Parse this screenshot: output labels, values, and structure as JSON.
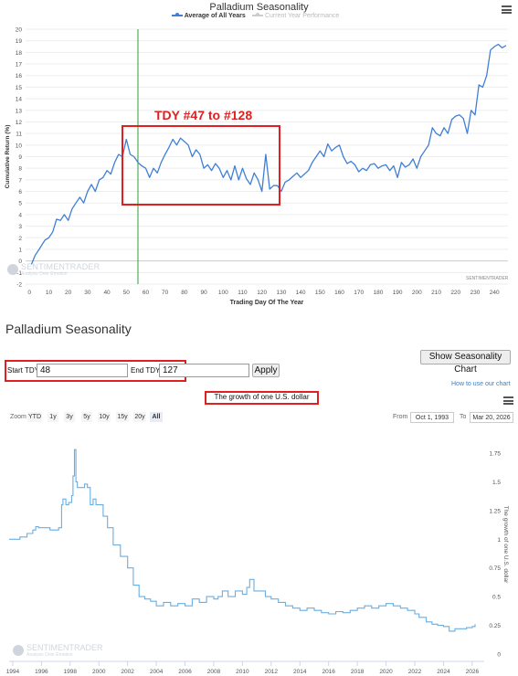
{
  "top_chart": {
    "title": "Palladium Seasonality",
    "legend": [
      {
        "label": "Average of All Years",
        "color": "#3f7fd6",
        "active": true
      },
      {
        "label": "Current Year Performance",
        "color": "#bbbbbb",
        "active": false
      }
    ],
    "annotation": "TDY #47 to #128",
    "watermark": "SENTIMENTRADER",
    "watermark_sub": "Analysis Over Emotion",
    "credit": "SENTIMENTRADER",
    "menu_icon": "hamburger-menu-icon"
  },
  "middle": {
    "title": "Palladium Seasonality",
    "show_chart_button": "Show Seasonality Chart",
    "start_label": "Start TDY:",
    "start_value": "48",
    "end_label": "End TDY:",
    "end_value": "127",
    "apply_button": "Apply",
    "help_link": "How to use our chart"
  },
  "bottom_chart": {
    "title": "The growth of one U.S. dollar",
    "zoom_label": "Zoom",
    "zoom_options": [
      "YTD",
      "1y",
      "3y",
      "5y",
      "10y",
      "15y",
      "20y",
      "All"
    ],
    "zoom_selected": "All",
    "from_label": "From",
    "from_value": "Oct 1, 1993",
    "to_label": "To",
    "to_value": "Mar 20, 2026",
    "watermark": "SENTIMENTRADER",
    "watermark_sub": "Analysis Over Emotion",
    "menu_icon": "hamburger-menu-icon"
  },
  "colors": {
    "line": "#3f7fd6",
    "bottom_line": "#6aaee0",
    "highlight": "#e02020",
    "marker": "#2e9e3a"
  },
  "chart_data": [
    {
      "type": "line",
      "title": "Palladium Seasonality",
      "xlabel": "Trading Day Of The Year",
      "ylabel": "Cumulative Return (%)",
      "xlim": [
        -2,
        247
      ],
      "ylim": [
        -2,
        20
      ],
      "x_ticks": [
        0,
        10,
        20,
        30,
        40,
        50,
        60,
        70,
        80,
        90,
        100,
        110,
        120,
        130,
        140,
        150,
        160,
        170,
        180,
        190,
        200,
        210,
        220,
        230,
        240
      ],
      "y_ticks": [
        -2,
        -1,
        0,
        1,
        2,
        3,
        4,
        5,
        6,
        7,
        8,
        9,
        10,
        11,
        12,
        13,
        14,
        15,
        16,
        17,
        18,
        19,
        20
      ],
      "vertical_line_x": 56,
      "highlight_range": [
        47,
        128
      ],
      "series": [
        {
          "name": "Average of All Years",
          "x": [
            1,
            3,
            5,
            8,
            10,
            12,
            14,
            16,
            18,
            20,
            22,
            24,
            26,
            28,
            30,
            32,
            34,
            36,
            38,
            40,
            42,
            44,
            46,
            48,
            50,
            52,
            54,
            56,
            58,
            60,
            62,
            64,
            66,
            68,
            70,
            72,
            74,
            76,
            78,
            80,
            82,
            84,
            86,
            88,
            90,
            92,
            94,
            96,
            98,
            100,
            102,
            104,
            106,
            108,
            110,
            112,
            114,
            116,
            118,
            120,
            122,
            124,
            126,
            128,
            130,
            132,
            134,
            136,
            138,
            140,
            142,
            144,
            146,
            148,
            150,
            152,
            154,
            156,
            158,
            160,
            162,
            164,
            166,
            168,
            170,
            172,
            174,
            176,
            178,
            180,
            182,
            184,
            186,
            188,
            190,
            192,
            194,
            196,
            198,
            200,
            202,
            204,
            206,
            208,
            210,
            212,
            214,
            216,
            218,
            220,
            222,
            224,
            226,
            228,
            230,
            232,
            234,
            236,
            238,
            240,
            242,
            244,
            246
          ],
          "y": [
            -0.3,
            0.5,
            1.0,
            1.8,
            2.0,
            2.5,
            3.6,
            3.5,
            4.0,
            3.5,
            4.5,
            5.0,
            5.5,
            5.0,
            6.0,
            6.6,
            6.0,
            7.0,
            7.2,
            7.8,
            7.5,
            8.5,
            9.2,
            9.0,
            10.5,
            9.2,
            9.0,
            8.5,
            8.2,
            8.0,
            7.2,
            8.0,
            7.6,
            8.5,
            9.2,
            9.8,
            10.5,
            10.0,
            10.6,
            10.3,
            10.0,
            9.0,
            9.6,
            9.2,
            8.0,
            8.3,
            7.8,
            8.4,
            8.0,
            7.2,
            7.8,
            7.0,
            8.2,
            7.0,
            8.0,
            7.1,
            6.6,
            7.6,
            7.0,
            6.0,
            9.2,
            6.2,
            6.5,
            6.5,
            6.0,
            6.8,
            7.0,
            7.3,
            7.6,
            7.2,
            7.5,
            7.8,
            8.5,
            9.0,
            9.5,
            9.0,
            10.1,
            9.5,
            9.8,
            10.0,
            9.0,
            8.4,
            8.6,
            8.3,
            7.7,
            8.0,
            7.8,
            8.3,
            8.4,
            8.0,
            8.2,
            8.3,
            7.8,
            8.2,
            7.2,
            8.5,
            8.1,
            8.3,
            8.8,
            8.0,
            9.0,
            9.5,
            10.0,
            11.5,
            11.0,
            10.8,
            11.5,
            11.0,
            12.2,
            12.5,
            12.6,
            12.3,
            11.0,
            13.0,
            12.6,
            15.2,
            15.0,
            16.0,
            18.2,
            18.5,
            18.7,
            18.4,
            18.6
          ]
        }
      ]
    },
    {
      "type": "line",
      "title": "The growth of one U.S. dollar",
      "ylabel": "The growth of one U.S. dollar",
      "xlim": [
        1993.75,
        2026.2
      ],
      "ylim": [
        0,
        1.75
      ],
      "x_ticks": [
        1994,
        1996,
        1998,
        2000,
        2002,
        2004,
        2006,
        2008,
        2010,
        2012,
        2014,
        2016,
        2018,
        2020,
        2022,
        2024,
        2026
      ],
      "y_ticks": [
        0,
        0.25,
        0.5,
        0.75,
        1,
        1.25,
        1.5,
        1.75
      ],
      "series": [
        {
          "name": "",
          "x": [
            1993.75,
            1994.2,
            1994.5,
            1995.0,
            1995.4,
            1995.6,
            1995.8,
            1996.2,
            1996.6,
            1996.9,
            1997.2,
            1997.4,
            1997.5,
            1997.7,
            1997.9,
            1998.1,
            1998.2,
            1998.3,
            1998.4,
            1998.5,
            1998.7,
            1999.0,
            1999.2,
            1999.4,
            1999.6,
            1999.8,
            2000.0,
            2000.3,
            2000.6,
            2001.0,
            2001.5,
            2002.0,
            2002.4,
            2002.8,
            2003.2,
            2003.6,
            2004.0,
            2004.5,
            2005.0,
            2005.5,
            2006.0,
            2006.5,
            2007.0,
            2007.5,
            2008.0,
            2008.3,
            2008.6,
            2009.0,
            2009.5,
            2010.0,
            2010.3,
            2010.5,
            2010.8,
            2011.2,
            2011.6,
            2012.0,
            2012.5,
            2013.0,
            2013.5,
            2014.0,
            2014.5,
            2015.0,
            2015.5,
            2016.0,
            2016.5,
            2017.0,
            2017.5,
            2018.0,
            2018.5,
            2019.0,
            2019.5,
            2020.0,
            2020.5,
            2021.0,
            2021.5,
            2022.0,
            2022.3,
            2022.8,
            2023.2,
            2023.6,
            2024.0,
            2024.4,
            2024.8,
            2025.2,
            2025.6,
            2026.0,
            2026.2
          ],
          "y": [
            1.0,
            1.0,
            1.02,
            1.05,
            1.08,
            1.11,
            1.1,
            1.1,
            1.08,
            1.08,
            1.1,
            1.3,
            1.35,
            1.3,
            1.32,
            1.38,
            1.55,
            1.78,
            1.5,
            1.45,
            1.45,
            1.48,
            1.45,
            1.3,
            1.35,
            1.3,
            1.3,
            1.2,
            1.1,
            0.95,
            0.85,
            0.75,
            0.6,
            0.5,
            0.48,
            0.46,
            0.42,
            0.45,
            0.42,
            0.44,
            0.42,
            0.48,
            0.45,
            0.5,
            0.48,
            0.5,
            0.55,
            0.5,
            0.55,
            0.52,
            0.58,
            0.65,
            0.55,
            0.55,
            0.5,
            0.48,
            0.45,
            0.42,
            0.4,
            0.38,
            0.4,
            0.38,
            0.36,
            0.35,
            0.37,
            0.36,
            0.38,
            0.4,
            0.42,
            0.4,
            0.42,
            0.44,
            0.42,
            0.4,
            0.38,
            0.35,
            0.32,
            0.28,
            0.26,
            0.25,
            0.24,
            0.2,
            0.22,
            0.22,
            0.23,
            0.24,
            0.26
          ]
        }
      ]
    }
  ]
}
